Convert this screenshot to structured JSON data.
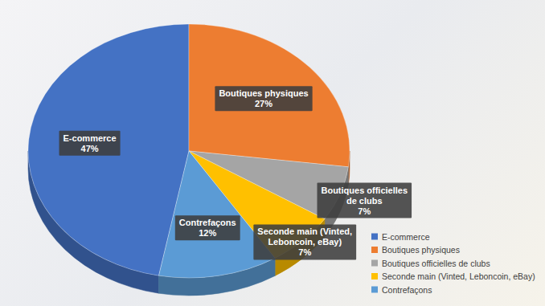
{
  "chart_data": {
    "type": "pie",
    "categories": [
      "E-commerce",
      "Boutiques physiques",
      "Boutiques officielles de clubs",
      "Seconde main (Vinted, Leboncoin, eBay)",
      "Contrefaçons"
    ],
    "values": [
      47,
      27,
      7,
      7,
      12
    ],
    "value_labels": [
      "47%",
      "27%",
      "7%",
      "7%",
      "12%"
    ],
    "colors": [
      "#4472c4",
      "#ed7d31",
      "#a5a5a5",
      "#ffc000",
      "#5b9bd5"
    ],
    "data_labels": true,
    "legend": "bottom-right"
  }
}
